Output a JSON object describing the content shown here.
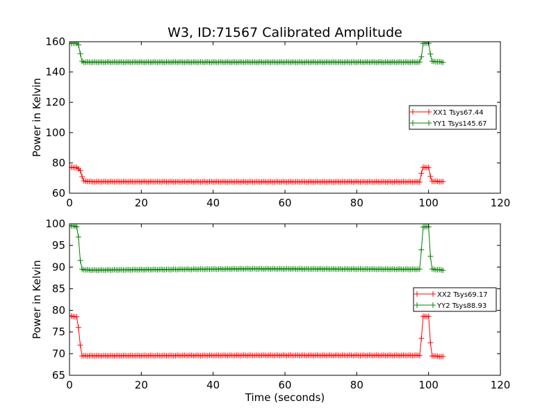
{
  "title": "W3, ID:71567 Calibrated Amplitude",
  "colors": {
    "red": "#ff0000",
    "green": "#008000"
  },
  "chart_data": [
    {
      "type": "line",
      "ylabel": "Power in Kelvin",
      "xlabel": "",
      "xlim": [
        0,
        120
      ],
      "ylim": [
        60,
        160
      ],
      "xticks": [
        0,
        20,
        40,
        60,
        80,
        100,
        120
      ],
      "yticks": [
        60,
        80,
        100,
        120,
        140,
        160
      ],
      "legend_position": "right",
      "series": [
        {
          "name": "XX1 Tsys67.44",
          "color": "#ff0000",
          "marker": "+",
          "x": [
            0,
            1,
            2,
            3,
            3.5,
            4,
            6,
            50,
            96,
            97.5,
            98,
            98.5,
            100,
            100.5,
            101,
            104
          ],
          "values": [
            77,
            77,
            77,
            75,
            71,
            68,
            67.6,
            67.5,
            67.5,
            67.5,
            73,
            77,
            77,
            71,
            68,
            67.5
          ]
        },
        {
          "name": "YY1 Tsys145.67",
          "color": "#008000",
          "marker": "+",
          "x": [
            0,
            1,
            2,
            2.5,
            3,
            3.5,
            4,
            6,
            50,
            96,
            97.5,
            98,
            98.5,
            100,
            100.5,
            101,
            104
          ],
          "values": [
            159,
            159,
            159,
            158,
            152,
            147,
            146.5,
            146.5,
            146.5,
            146.5,
            146.5,
            150,
            159,
            159,
            152,
            147,
            146.5
          ]
        }
      ]
    },
    {
      "type": "line",
      "ylabel": "Power in Kelvin",
      "xlabel": "Time (seconds)",
      "xlim": [
        0,
        120
      ],
      "ylim": [
        65,
        100
      ],
      "xticks": [
        0,
        20,
        40,
        60,
        80,
        100,
        120
      ],
      "yticks": [
        65,
        70,
        75,
        80,
        85,
        90,
        95,
        100
      ],
      "legend_position": "right",
      "series": [
        {
          "name": "XX2 Tsys69.17",
          "color": "#ff0000",
          "marker": "+",
          "x": [
            0,
            1,
            2,
            2.5,
            3,
            3.5,
            4,
            6,
            50,
            96,
            97.5,
            98,
            98.5,
            100,
            100.5,
            101,
            104
          ],
          "values": [
            78.7,
            78.6,
            78.5,
            76,
            72,
            69.5,
            69.5,
            69.5,
            69.6,
            69.6,
            69.6,
            73.5,
            78.6,
            78.6,
            72.5,
            69.5,
            69.3
          ]
        },
        {
          "name": "YY2 Tsys88.93",
          "color": "#008000",
          "marker": "+",
          "x": [
            0,
            1,
            2,
            2.5,
            3,
            3.5,
            4,
            6,
            50,
            96,
            97.5,
            98,
            98.5,
            100,
            100.5,
            101,
            104
          ],
          "values": [
            99.6,
            99.5,
            99.3,
            97,
            91.5,
            89.5,
            89.4,
            89.3,
            89.6,
            89.5,
            89.5,
            94,
            99.3,
            99.3,
            92.5,
            89.5,
            89.3
          ]
        }
      ]
    }
  ]
}
